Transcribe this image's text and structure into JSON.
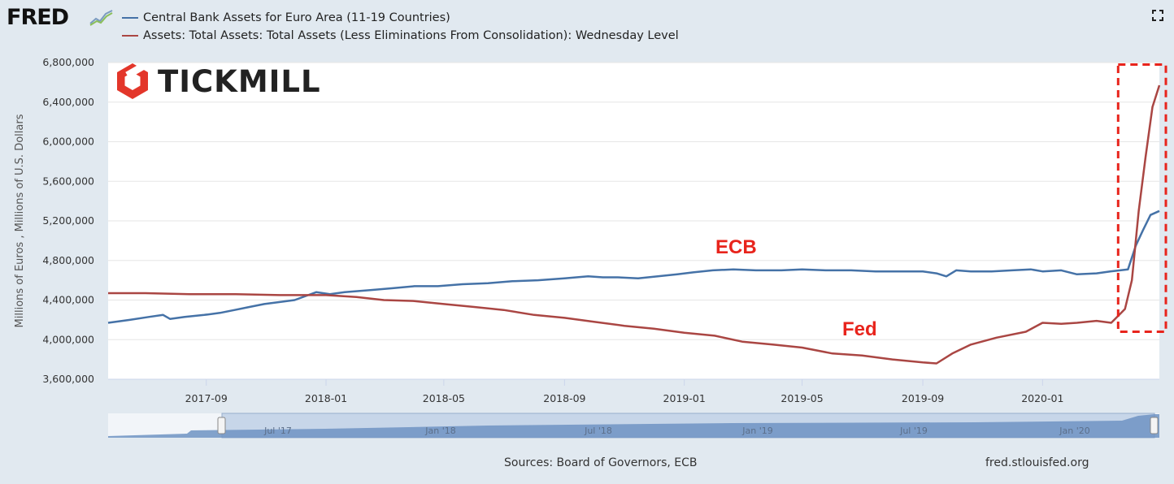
{
  "header": {
    "logo_text": "FRED",
    "fullscreen_icon": "fullscreen-icon"
  },
  "legend": [
    {
      "name": "Central Bank Assets for Euro Area (11-19 Countries)",
      "color": "#4572a7"
    },
    {
      "name": "Assets: Total Assets: Total Assets (Less Eliminations From Consolidation): Wednesday Level",
      "color": "#aa4643"
    }
  ],
  "watermark": {
    "text": "TICKMILL",
    "color": "#e3362a"
  },
  "annotations": {
    "ecb": "ECB",
    "fed": "Fed"
  },
  "colors": {
    "ecb": "#4572a7",
    "fed": "#aa4643",
    "highlight": "#e8241c",
    "annotation": "#e8241c"
  },
  "chart_data": {
    "type": "line",
    "ylabel": "Millions of Euros , Millions of U.S. Dollars",
    "ylim": [
      3600000,
      6800000
    ],
    "yticks": [
      3600000,
      4000000,
      4400000,
      4800000,
      5200000,
      5600000,
      6000000,
      6400000,
      6800000
    ],
    "ytick_labels": [
      "3,600,000",
      "4,000,000",
      "4,400,000",
      "4,800,000",
      "5,200,000",
      "5,600,000",
      "6,000,000",
      "6,400,000",
      "6,800,000"
    ],
    "xlim": [
      "2017-05-24",
      "2020-04-29"
    ],
    "xticks": [
      "2017-09-01",
      "2018-01-01",
      "2018-05-01",
      "2018-09-01",
      "2019-01-01",
      "2019-05-01",
      "2019-09-01",
      "2020-01-01"
    ],
    "xtick_labels": [
      "2017-09",
      "2018-01",
      "2018-05",
      "2018-09",
      "2019-01",
      "2019-05",
      "2019-09",
      "2020-01"
    ],
    "grid": true,
    "highlight_box": {
      "x": [
        "2020-03-18",
        "2020-04-29"
      ],
      "y": [
        4080000,
        6780000
      ]
    },
    "series": [
      {
        "name": "Central Bank Assets for Euro Area (11-19 Countries)",
        "x": [
          "2017-05-24",
          "2017-06-15",
          "2017-07-05",
          "2017-07-19",
          "2017-07-26",
          "2017-08-10",
          "2017-08-30",
          "2017-09-15",
          "2017-09-30",
          "2017-10-15",
          "2017-10-30",
          "2017-11-15",
          "2017-11-30",
          "2017-12-22",
          "2018-01-05",
          "2018-01-20",
          "2018-02-15",
          "2018-03-10",
          "2018-04-01",
          "2018-04-25",
          "2018-05-20",
          "2018-06-15",
          "2018-07-10",
          "2018-08-05",
          "2018-09-01",
          "2018-09-25",
          "2018-10-10",
          "2018-10-25",
          "2018-11-15",
          "2018-12-05",
          "2018-12-25",
          "2019-01-10",
          "2019-01-30",
          "2019-02-20",
          "2019-03-15",
          "2019-04-10",
          "2019-05-01",
          "2019-05-25",
          "2019-06-20",
          "2019-07-15",
          "2019-08-10",
          "2019-09-01",
          "2019-09-15",
          "2019-09-25",
          "2019-10-05",
          "2019-10-20",
          "2019-11-10",
          "2019-12-01",
          "2019-12-20",
          "2020-01-01",
          "2020-01-20",
          "2020-02-05",
          "2020-02-25",
          "2020-03-10",
          "2020-03-20",
          "2020-03-28",
          "2020-04-05",
          "2020-04-12",
          "2020-04-20",
          "2020-04-29"
        ],
        "values": [
          4170000,
          4200000,
          4230000,
          4250000,
          4210000,
          4230000,
          4250000,
          4270000,
          4300000,
          4330000,
          4360000,
          4380000,
          4400000,
          4480000,
          4460000,
          4480000,
          4500000,
          4520000,
          4540000,
          4540000,
          4560000,
          4570000,
          4590000,
          4600000,
          4620000,
          4640000,
          4630000,
          4630000,
          4620000,
          4640000,
          4660000,
          4680000,
          4700000,
          4710000,
          4700000,
          4700000,
          4710000,
          4700000,
          4700000,
          4690000,
          4690000,
          4690000,
          4670000,
          4640000,
          4700000,
          4690000,
          4690000,
          4700000,
          4710000,
          4690000,
          4700000,
          4660000,
          4670000,
          4690000,
          4700000,
          4710000,
          4950000,
          5100000,
          5260000,
          5300000
        ]
      },
      {
        "name": "Assets: Total Assets: Total Assets (Less Eliminations From Consolidation): Wednesday Level",
        "x": [
          "2017-05-24",
          "2017-07-01",
          "2017-08-15",
          "2017-10-01",
          "2017-11-15",
          "2018-01-01",
          "2018-02-01",
          "2018-03-01",
          "2018-04-01",
          "2018-05-01",
          "2018-06-01",
          "2018-07-01",
          "2018-08-01",
          "2018-09-01",
          "2018-10-01",
          "2018-11-01",
          "2018-12-01",
          "2019-01-01",
          "2019-02-01",
          "2019-03-01",
          "2019-04-01",
          "2019-05-01",
          "2019-06-01",
          "2019-07-01",
          "2019-08-01",
          "2019-09-01",
          "2019-09-15",
          "2019-10-01",
          "2019-10-20",
          "2019-11-15",
          "2019-12-15",
          "2020-01-01",
          "2020-01-20",
          "2020-02-05",
          "2020-02-25",
          "2020-03-11",
          "2020-03-18",
          "2020-03-25",
          "2020-04-01",
          "2020-04-08",
          "2020-04-15",
          "2020-04-22",
          "2020-04-29"
        ],
        "values": [
          4470000,
          4470000,
          4460000,
          4460000,
          4450000,
          4450000,
          4430000,
          4400000,
          4390000,
          4360000,
          4330000,
          4300000,
          4250000,
          4220000,
          4180000,
          4140000,
          4110000,
          4070000,
          4040000,
          3980000,
          3950000,
          3920000,
          3860000,
          3840000,
          3800000,
          3770000,
          3760000,
          3860000,
          3950000,
          4020000,
          4080000,
          4170000,
          4160000,
          4170000,
          4190000,
          4170000,
          4240000,
          4310000,
          4600000,
          5300000,
          5850000,
          6350000,
          6570000
        ]
      }
    ]
  },
  "navigator": {
    "labels": [
      "Jul '17",
      "Jan '18",
      "Jul '18",
      "Jan '19",
      "Jul '19",
      "Jan '20"
    ]
  },
  "footer": {
    "sources": "Sources: Board of Governors, ECB",
    "site": "fred.stlouisfed.org"
  }
}
